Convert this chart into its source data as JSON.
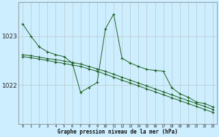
{
  "xlabel": "Graphe pression niveau de la mer (hPa)",
  "background_color": "#cceeff",
  "grid_color": "#bbbbbb",
  "line_color": "#1a5c1a",
  "hours": [
    0,
    1,
    2,
    3,
    4,
    5,
    6,
    7,
    8,
    9,
    10,
    11,
    12,
    13,
    14,
    15,
    16,
    17,
    18,
    19,
    20,
    21,
    22,
    23
  ],
  "series1": [
    1023.25,
    1023.0,
    1022.78,
    1022.68,
    1022.62,
    1022.58,
    1022.45,
    1021.85,
    1021.95,
    1022.05,
    1023.15,
    1023.45,
    1022.55,
    1022.45,
    1022.38,
    1022.32,
    1022.3,
    1022.28,
    1021.95,
    1021.82,
    1021.75,
    1021.65,
    1021.62,
    1021.55
  ],
  "series2": [
    1022.62,
    1022.6,
    1022.57,
    1022.54,
    1022.52,
    1022.49,
    1022.46,
    1022.43,
    1022.38,
    1022.33,
    1022.28,
    1022.22,
    1022.16,
    1022.1,
    1022.04,
    1021.98,
    1021.92,
    1021.86,
    1021.8,
    1021.74,
    1021.68,
    1021.62,
    1021.56,
    1021.5
  ],
  "series3": [
    1022.58,
    1022.56,
    1022.53,
    1022.5,
    1022.47,
    1022.44,
    1022.41,
    1022.38,
    1022.33,
    1022.28,
    1022.22,
    1022.16,
    1022.1,
    1022.04,
    1021.98,
    1021.92,
    1021.86,
    1021.8,
    1021.74,
    1021.68,
    1021.62,
    1021.56,
    1021.5,
    1021.44
  ],
  "yticks": [
    1022,
    1023
  ],
  "ylim": [
    1021.2,
    1023.7
  ],
  "xlim": [
    -0.5,
    23.5
  ]
}
